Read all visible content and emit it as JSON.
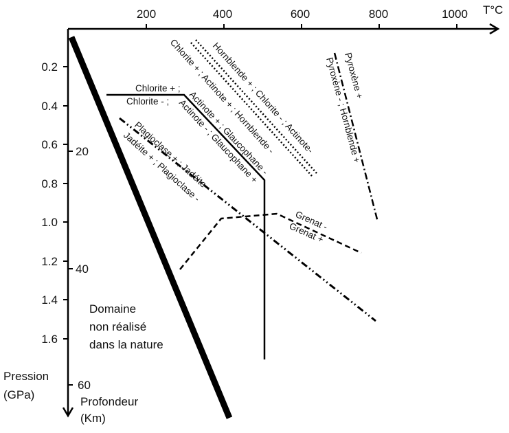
{
  "temperature_axis": {
    "title": "T°C",
    "ticks": [
      {
        "value": 200,
        "label": "200"
      },
      {
        "value": 400,
        "label": "400"
      },
      {
        "value": 600,
        "label": "600"
      },
      {
        "value": 800,
        "label": "800"
      },
      {
        "value": 1000,
        "label": "1000"
      }
    ]
  },
  "pressure_axis": {
    "title_line1": "Pression",
    "title_line2": "(GPa)",
    "ticks": [
      {
        "value": 0.2,
        "label": "0.2"
      },
      {
        "value": 0.4,
        "label": "0.4"
      },
      {
        "value": 0.6,
        "label": "0.6"
      },
      {
        "value": 0.8,
        "label": "0.8"
      },
      {
        "value": 1.0,
        "label": "1.0"
      },
      {
        "value": 1.2,
        "label": "1.2"
      },
      {
        "value": 1.4,
        "label": "1.4"
      },
      {
        "value": 1.6,
        "label": "1.6"
      }
    ]
  },
  "depth_axis": {
    "title_line1": "Profondeur",
    "title_line2": "(Km)",
    "ticks": [
      {
        "value": 20,
        "label": "20"
      },
      {
        "value": 40,
        "label": "40"
      },
      {
        "value": 60,
        "label": "60"
      }
    ]
  },
  "unrealized_domain": {
    "line1": "Domaine",
    "line2": "non réalisé",
    "line3": "dans la nature"
  },
  "reactions": {
    "chlorite_actinote": {
      "label_upper": "Chlorite + ;",
      "label_lower": "Chlorite - ;"
    },
    "actinote_glaucophane": {
      "label_upper": "Actinote + ; Glaucophane -",
      "label_lower": "Actinote - ; Glaucophane +"
    },
    "hornblende_chlorite": {
      "label_upper": "Hornblende + ; Chlorite - ; Actinote-",
      "label_lower": "Chlorite + ; Actinote + ; Hornblende -"
    },
    "pyroxene_hornblende": {
      "label_upper": "Pyroxène +",
      "label_lower": "Pyroxène - ; Hornblende +"
    },
    "plagioclase_jadeite": {
      "label_upper": "Plagioclase + ; Jadéite -",
      "label_lower": "Jadéite + ; Plagioclase -"
    },
    "grenat": {
      "label_upper": "Grenat -",
      "label_lower": "Grenat +"
    }
  }
}
